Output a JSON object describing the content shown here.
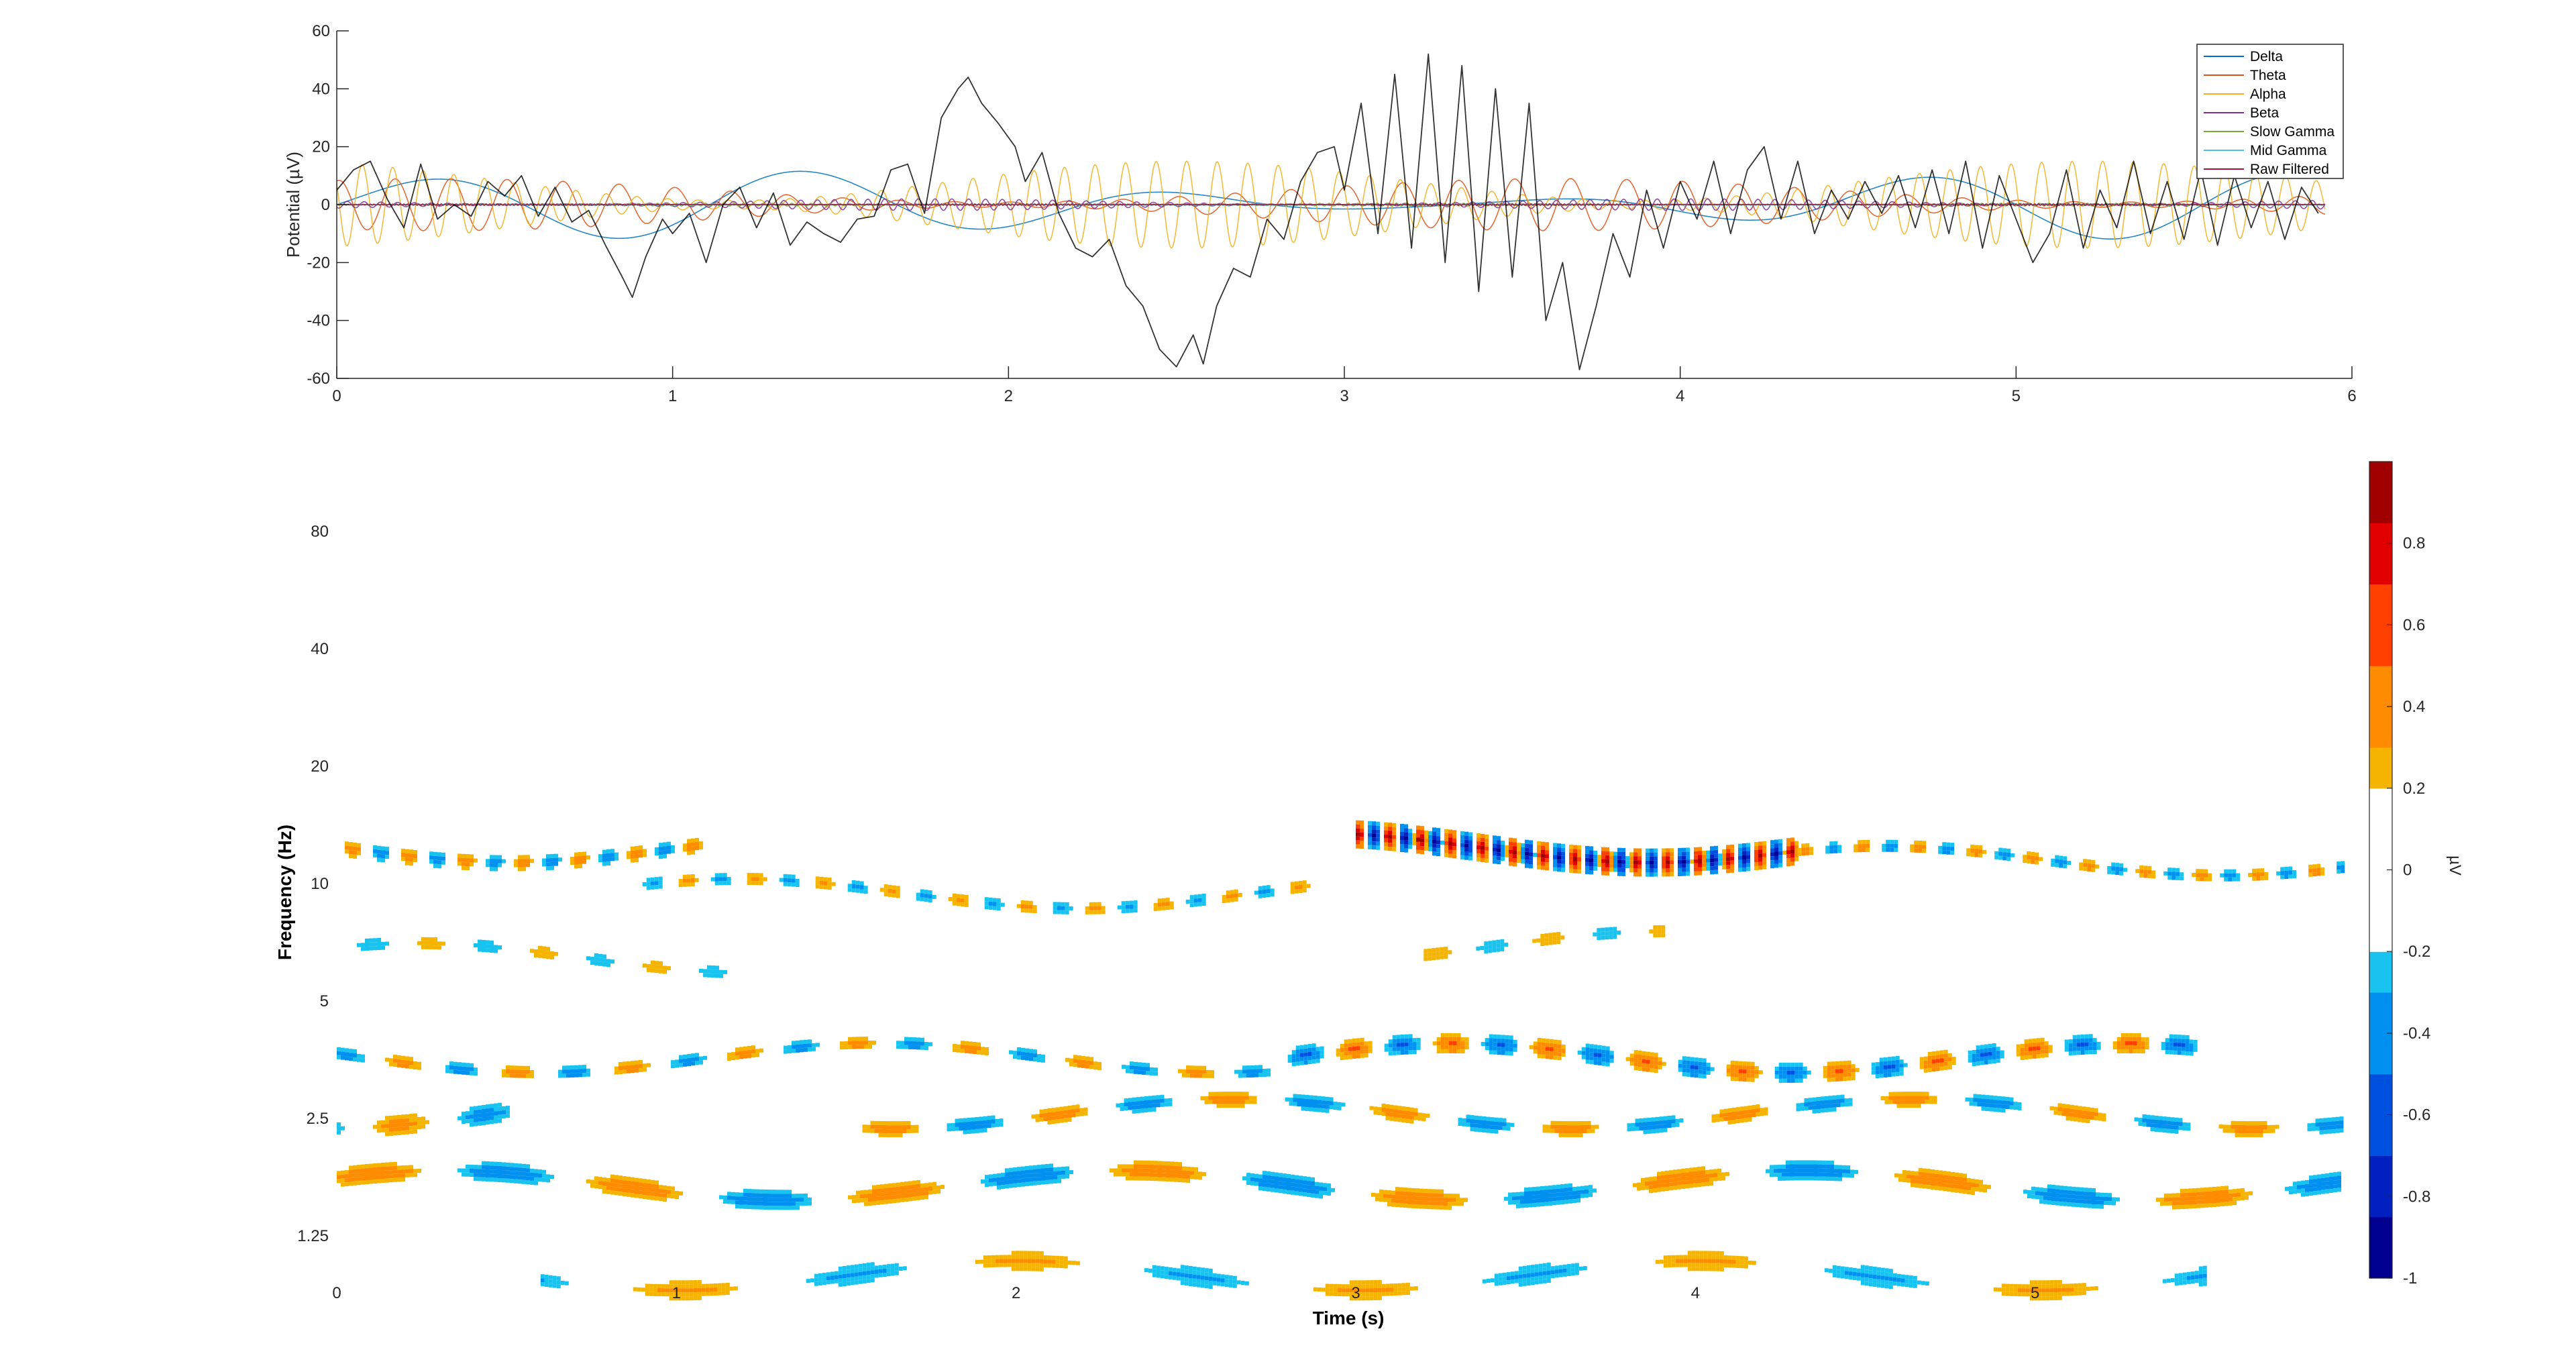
{
  "chart_data": [
    {
      "type": "line",
      "ylabel": "Potential (µV)",
      "xlim": [
        0,
        6
      ],
      "ylim": [
        -60,
        60
      ],
      "x_ticks": [
        "0",
        "1",
        "2",
        "3",
        "4",
        "5",
        "6"
      ],
      "y_ticks": [
        "60",
        "40",
        "20",
        "0",
        "-20",
        "-40",
        "-60"
      ],
      "legend_placement": "top-right",
      "series": [
        {
          "name": "Delta",
          "color": "#0072BD",
          "amplitude": 12,
          "freq_hz": 0.9
        },
        {
          "name": "Theta",
          "color": "#D95319",
          "amplitude": 9,
          "freq_hz": 6
        },
        {
          "name": "Alpha",
          "color": "#EDB120",
          "amplitude": 15,
          "freq_hz": 11
        },
        {
          "name": "Beta",
          "color": "#7E2F8E",
          "amplitude": 2,
          "freq_hz": 20
        },
        {
          "name": "Slow Gamma",
          "color": "#77AC30",
          "amplitude": 0.5,
          "freq_hz": 35
        },
        {
          "name": "Mid Gamma",
          "color": "#4DBEEE",
          "amplitude": 0.3,
          "freq_hz": 70
        },
        {
          "name": "Raw Filtered",
          "color": "#A2142F",
          "amplitude": 0.3,
          "freq_hz": 90
        }
      ],
      "raw_trace": {
        "color": "#000000",
        "points": [
          [
            0,
            5
          ],
          [
            0.05,
            12
          ],
          [
            0.1,
            15
          ],
          [
            0.15,
            2
          ],
          [
            0.2,
            -8
          ],
          [
            0.25,
            14
          ],
          [
            0.3,
            -5
          ],
          [
            0.35,
            0
          ],
          [
            0.4,
            -4
          ],
          [
            0.45,
            8
          ],
          [
            0.5,
            3
          ],
          [
            0.55,
            10
          ],
          [
            0.6,
            -4
          ],
          [
            0.65,
            6
          ],
          [
            0.7,
            -6
          ],
          [
            0.75,
            -2
          ],
          [
            0.8,
            -14
          ],
          [
            0.85,
            -25
          ],
          [
            0.88,
            -32
          ],
          [
            0.92,
            -18
          ],
          [
            0.97,
            -5
          ],
          [
            1.0,
            -10
          ],
          [
            1.05,
            -3
          ],
          [
            1.1,
            -20
          ],
          [
            1.15,
            0
          ],
          [
            1.2,
            6
          ],
          [
            1.25,
            -8
          ],
          [
            1.3,
            4
          ],
          [
            1.35,
            -14
          ],
          [
            1.4,
            -6
          ],
          [
            1.45,
            -10
          ],
          [
            1.5,
            -13
          ],
          [
            1.55,
            -5
          ],
          [
            1.6,
            -4
          ],
          [
            1.65,
            12
          ],
          [
            1.7,
            14
          ],
          [
            1.75,
            -3
          ],
          [
            1.8,
            30
          ],
          [
            1.85,
            40
          ],
          [
            1.88,
            44
          ],
          [
            1.92,
            35
          ],
          [
            1.97,
            28
          ],
          [
            2.02,
            20
          ],
          [
            2.05,
            8
          ],
          [
            2.1,
            18
          ],
          [
            2.15,
            -3
          ],
          [
            2.2,
            -15
          ],
          [
            2.25,
            -18
          ],
          [
            2.3,
            -12
          ],
          [
            2.35,
            -28
          ],
          [
            2.4,
            -35
          ],
          [
            2.45,
            -50
          ],
          [
            2.5,
            -56
          ],
          [
            2.55,
            -45
          ],
          [
            2.58,
            -55
          ],
          [
            2.62,
            -35
          ],
          [
            2.67,
            -22
          ],
          [
            2.72,
            -25
          ],
          [
            2.77,
            -5
          ],
          [
            2.82,
            -12
          ],
          [
            2.87,
            8
          ],
          [
            2.92,
            18
          ],
          [
            2.97,
            20
          ],
          [
            3.0,
            5
          ],
          [
            3.05,
            35
          ],
          [
            3.1,
            -10
          ],
          [
            3.15,
            45
          ],
          [
            3.2,
            -15
          ],
          [
            3.25,
            52
          ],
          [
            3.3,
            -20
          ],
          [
            3.35,
            48
          ],
          [
            3.4,
            -30
          ],
          [
            3.45,
            40
          ],
          [
            3.5,
            -25
          ],
          [
            3.55,
            35
          ],
          [
            3.6,
            -40
          ],
          [
            3.65,
            -20
          ],
          [
            3.7,
            -57
          ],
          [
            3.75,
            -35
          ],
          [
            3.8,
            -10
          ],
          [
            3.85,
            -25
          ],
          [
            3.9,
            5
          ],
          [
            3.95,
            -15
          ],
          [
            4.0,
            8
          ],
          [
            4.05,
            -5
          ],
          [
            4.1,
            15
          ],
          [
            4.15,
            -10
          ],
          [
            4.2,
            12
          ],
          [
            4.25,
            20
          ],
          [
            4.3,
            -5
          ],
          [
            4.35,
            15
          ],
          [
            4.4,
            -10
          ],
          [
            4.45,
            5
          ],
          [
            4.5,
            -5
          ],
          [
            4.55,
            8
          ],
          [
            4.6,
            -3
          ],
          [
            4.65,
            10
          ],
          [
            4.7,
            -8
          ],
          [
            4.75,
            12
          ],
          [
            4.8,
            -10
          ],
          [
            4.85,
            15
          ],
          [
            4.9,
            -15
          ],
          [
            4.95,
            10
          ],
          [
            5.0,
            -5
          ],
          [
            5.05,
            -20
          ],
          [
            5.1,
            -10
          ],
          [
            5.15,
            12
          ],
          [
            5.2,
            -15
          ],
          [
            5.25,
            5
          ],
          [
            5.3,
            -8
          ],
          [
            5.35,
            15
          ],
          [
            5.4,
            -10
          ],
          [
            5.45,
            8
          ],
          [
            5.5,
            -12
          ],
          [
            5.55,
            12
          ],
          [
            5.6,
            -14
          ],
          [
            5.65,
            10
          ],
          [
            5.7,
            -8
          ],
          [
            5.75,
            8
          ],
          [
            5.8,
            -12
          ],
          [
            5.85,
            6
          ],
          [
            5.9,
            -3
          ]
        ]
      }
    },
    {
      "type": "heatmap",
      "xlabel": "Time (s)",
      "ylabel": "Frequency (Hz)",
      "colorbar_label": "µV",
      "xlim": [
        0,
        6
      ],
      "x_ticks": [
        "0",
        "1",
        "2",
        "3",
        "4",
        "5"
      ],
      "y_ticks": [
        "80",
        "40",
        "20",
        "10",
        "5",
        "2.5",
        "1.25"
      ],
      "colorbar_ticks": [
        "0.8",
        "0.6",
        "0.4",
        "0.2",
        "0",
        "-0.2",
        "-0.4",
        "-0.6",
        "-0.8",
        "-1"
      ],
      "clim": [
        -1,
        1
      ],
      "threshold_abs": 0.2,
      "bands": [
        {
          "freq_hz": 12.5,
          "t_start": 0.0,
          "t_end": 1.1,
          "amp": 0.45,
          "cycle_hz": 6
        },
        {
          "freq_hz": 9.5,
          "t_start": 0.9,
          "t_end": 2.9,
          "amp": 0.35,
          "cycle_hz": 5
        },
        {
          "freq_hz": 12.5,
          "t_start": 3.0,
          "t_end": 4.3,
          "amp": 0.95,
          "cycle_hz": 11
        },
        {
          "freq_hz": 11.5,
          "t_start": 4.3,
          "t_end": 5.9,
          "amp": 0.4,
          "cycle_hz": 6
        },
        {
          "freq_hz": 6.5,
          "t_start": 0.0,
          "t_end": 1.2,
          "amp": 0.3,
          "cycle_hz": 3
        },
        {
          "freq_hz": 7.0,
          "t_start": 3.2,
          "t_end": 3.9,
          "amp": 0.3,
          "cycle_hz": 3
        },
        {
          "freq_hz": 3.6,
          "t_start": 0.0,
          "t_end": 2.8,
          "amp": 0.4,
          "cycle_hz": 3
        },
        {
          "freq_hz": 3.6,
          "t_start": 2.8,
          "t_end": 5.5,
          "amp": 0.55,
          "cycle_hz": 3.5
        },
        {
          "freq_hz": 2.6,
          "t_start": 0.0,
          "t_end": 0.5,
          "amp": 0.4,
          "cycle_hz": 2
        },
        {
          "freq_hz": 2.6,
          "t_start": 1.5,
          "t_end": 5.9,
          "amp": 0.45,
          "cycle_hz": 2
        },
        {
          "freq_hz": 1.7,
          "t_start": 0.0,
          "t_end": 5.9,
          "amp": 0.5,
          "cycle_hz": 1.3
        },
        {
          "freq_hz": 1.0,
          "t_start": 0.6,
          "t_end": 5.5,
          "amp": 0.35,
          "cycle_hz": 1
        }
      ]
    }
  ]
}
